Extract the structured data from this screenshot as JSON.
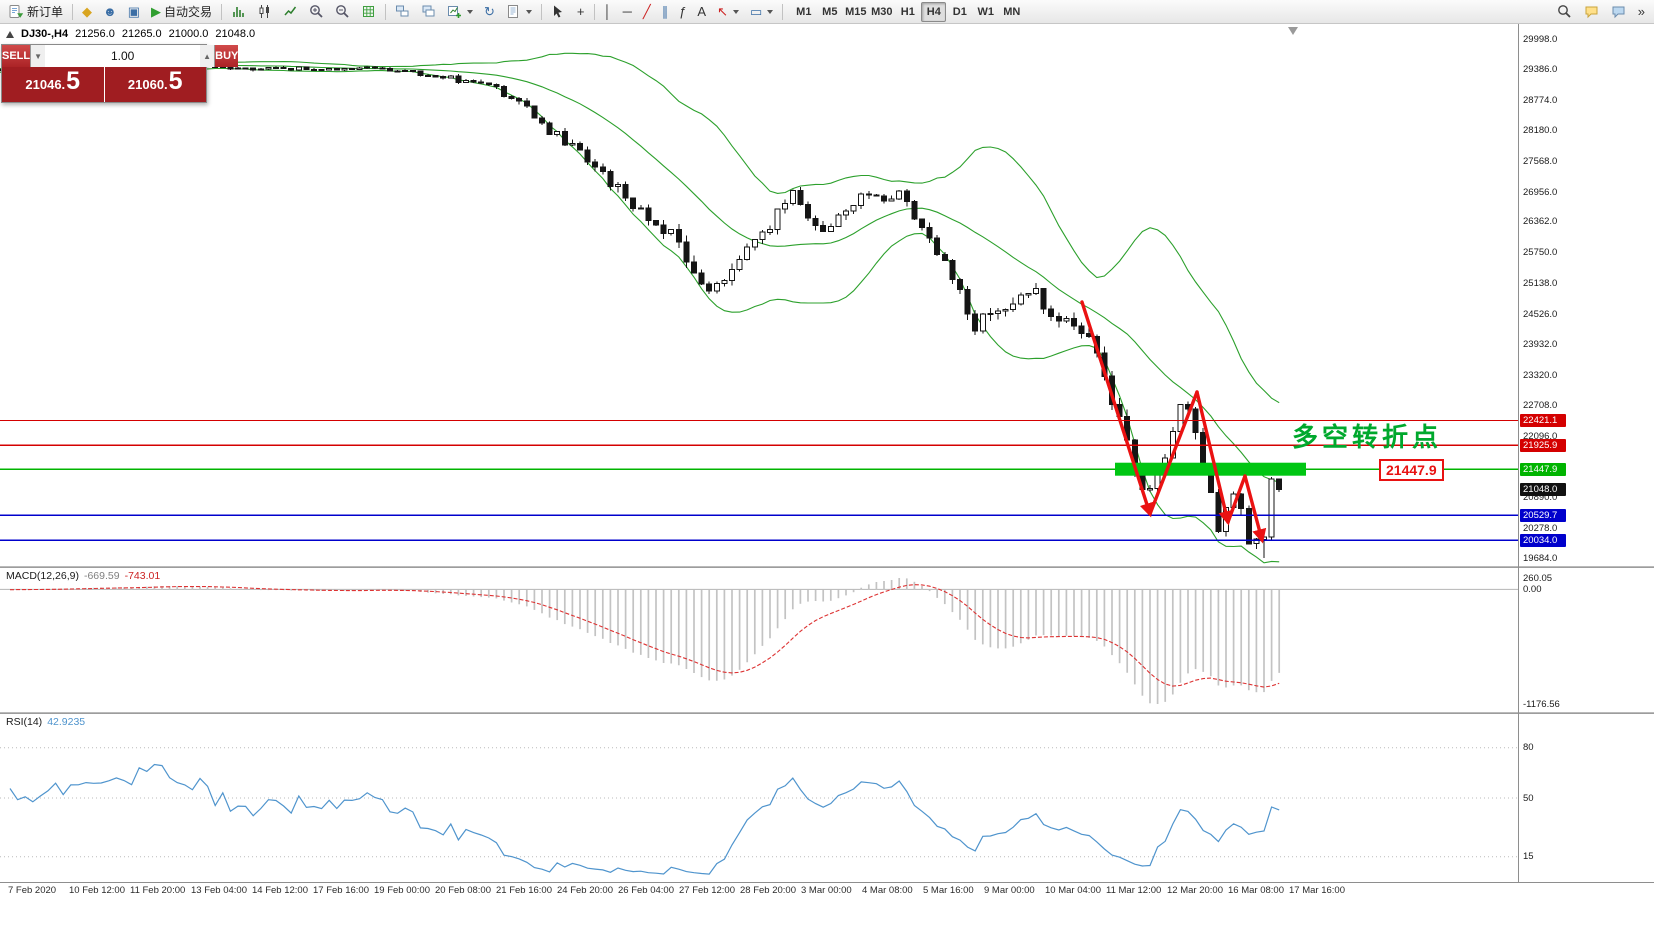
{
  "toolbar": {
    "new_order_label": "新订单",
    "autotrade_label": "自动交易",
    "timeframes": [
      "M1",
      "M5",
      "M15",
      "M30",
      "H1",
      "H4",
      "D1",
      "W1",
      "MN"
    ],
    "active_timeframe": "H4",
    "overflow_glyph": "»"
  },
  "icons": {
    "market_watch": "◆",
    "navigator": "☻",
    "terminal": "▣",
    "autotrade_play": "▶",
    "refresh": "↻",
    "crosshair": "+",
    "vertical_line": "│",
    "horizontal_line": "─",
    "trendline": "╱",
    "channel": "∥",
    "fibonacci": "ƒ",
    "text_tool": "A",
    "arrow_tool": "↖",
    "shapes_tool": "▭",
    "volume_down": "▼",
    "volume_up": "▲"
  },
  "chart_header": {
    "symbol": "DJ30-,H4",
    "open": "21256.0",
    "high": "21265.0",
    "low": "21000.0",
    "close": "21048.0"
  },
  "trade_panel": {
    "sell_label": "SELL",
    "buy_label": "BUY",
    "volume": "1.00",
    "sell_price_small": "21046.",
    "sell_price_big": "5",
    "buy_price_small": "21060.",
    "buy_price_big": "5"
  },
  "annotation": {
    "text": "多空转折点",
    "color": "#00a82d"
  },
  "callout": {
    "text": "21447.9",
    "color": "#e81212"
  },
  "price_axis": {
    "ticks": [
      29998.0,
      29386.0,
      28774.0,
      28180.0,
      27568.0,
      26956.0,
      26362.0,
      25750.0,
      25138.0,
      24526.0,
      23932.0,
      23320.0,
      22708.0,
      22096.0,
      20890.0,
      20278.0,
      19684.0
    ]
  },
  "levels": [
    {
      "label": "22421.1",
      "price": 22421.1,
      "color": "#d40000",
      "kind": "resistance"
    },
    {
      "label": "21925.9",
      "price": 21925.9,
      "color": "#d40000",
      "kind": "resistance"
    },
    {
      "label": "21447.9",
      "price": 21447.9,
      "color": "#00b400",
      "kind": "pivot"
    },
    {
      "label": "21048.0",
      "price": 21048.0,
      "color": "#111111",
      "kind": "current"
    },
    {
      "label": "20529.7",
      "price": 20529.7,
      "color": "#0000cc",
      "kind": "support"
    },
    {
      "label": "20034.0",
      "price": 20034.0,
      "color": "#0000cc",
      "kind": "support"
    }
  ],
  "macd": {
    "label": "MACD(12,26,9)",
    "value_main": "-669.59",
    "value_signal": "-743.01",
    "axis_top": "260.05",
    "axis_zero": "0.00",
    "axis_bottom": "-1176.56"
  },
  "rsi": {
    "label": "RSI(14)",
    "value": "42.9235",
    "levels": [
      80,
      50,
      15
    ],
    "axis_labels": [
      "80",
      "50",
      "15"
    ]
  },
  "time_axis": [
    "7 Feb 2020",
    "10 Feb 12:00",
    "11 Feb 20:00",
    "13 Feb 04:00",
    "14 Feb 12:00",
    "17 Feb 16:00",
    "19 Feb 00:00",
    "20 Feb 08:00",
    "21 Feb 16:00",
    "24 Feb 20:00",
    "26 Feb 04:00",
    "27 Feb 12:00",
    "28 Feb 20:00",
    "3 Mar 00:00",
    "4 Mar 08:00",
    "5 Mar 16:00",
    "9 Mar 00:00",
    "10 Mar 04:00",
    "11 Mar 12:00",
    "12 Mar 20:00",
    "16 Mar 08:00",
    "17 Mar 16:00"
  ],
  "chart_data": {
    "type": "candlestick",
    "symbol": "DJ30-",
    "timeframe": "H4",
    "title": "DJ30-,H4 21256.0 21265.0 21000.0 21048.0",
    "current_bar": {
      "open": 21256.0,
      "high": 21265.0,
      "low": 21000.0,
      "close": 21048.0
    },
    "bid": "21046.5",
    "ask": "21060.5",
    "y_range": [
      19684.0,
      29998.0
    ],
    "bars_visible": 168,
    "seed": 20200317,
    "grid": false,
    "indicators": [
      "Bollinger Bands(20,2)",
      "MACD(12,26,9) = -669.59 / -743.01",
      "RSI(14) = 42.9235"
    ],
    "horizontal_levels": {
      "resistance": [
        22421.1,
        21925.9
      ],
      "pivot": 21447.9,
      "support": [
        20529.7,
        20034.0
      ]
    },
    "macd_axis_range": [
      -1176.56,
      260.05
    ],
    "price_path": [
      [
        0,
        29380
      ],
      [
        0.07,
        29440
      ],
      [
        0.13,
        29520
      ],
      [
        0.19,
        29400
      ],
      [
        0.28,
        29420
      ],
      [
        0.33,
        29290
      ],
      [
        0.38,
        29060
      ],
      [
        0.43,
        28150
      ],
      [
        0.455,
        27550
      ],
      [
        0.48,
        27000
      ],
      [
        0.52,
        26150
      ],
      [
        0.55,
        25000
      ],
      [
        0.57,
        25400
      ],
      [
        0.6,
        26350
      ],
      [
        0.615,
        26950
      ],
      [
        0.64,
        26150
      ],
      [
        0.67,
        26800
      ],
      [
        0.7,
        26900
      ],
      [
        0.72,
        26250
      ],
      [
        0.74,
        25450
      ],
      [
        0.76,
        24300
      ],
      [
        0.8,
        25050
      ],
      [
        0.825,
        24550
      ],
      [
        0.85,
        24000
      ],
      [
        0.875,
        22500
      ],
      [
        0.895,
        20900
      ],
      [
        0.91,
        21700
      ],
      [
        0.925,
        22950
      ],
      [
        0.94,
        21500
      ],
      [
        0.953,
        20200
      ],
      [
        0.965,
        21200
      ],
      [
        0.978,
        19950
      ],
      [
        0.988,
        20100
      ],
      [
        1,
        21150
      ]
    ],
    "volatility": [
      [
        0,
        70
      ],
      [
        0.33,
        85
      ],
      [
        0.4,
        200
      ],
      [
        0.43,
        330
      ],
      [
        0.57,
        380
      ],
      [
        0.62,
        300
      ],
      [
        0.7,
        260
      ],
      [
        0.74,
        330
      ],
      [
        0.76,
        420
      ],
      [
        0.82,
        350
      ],
      [
        0.86,
        400
      ],
      [
        1,
        430
      ]
    ]
  }
}
